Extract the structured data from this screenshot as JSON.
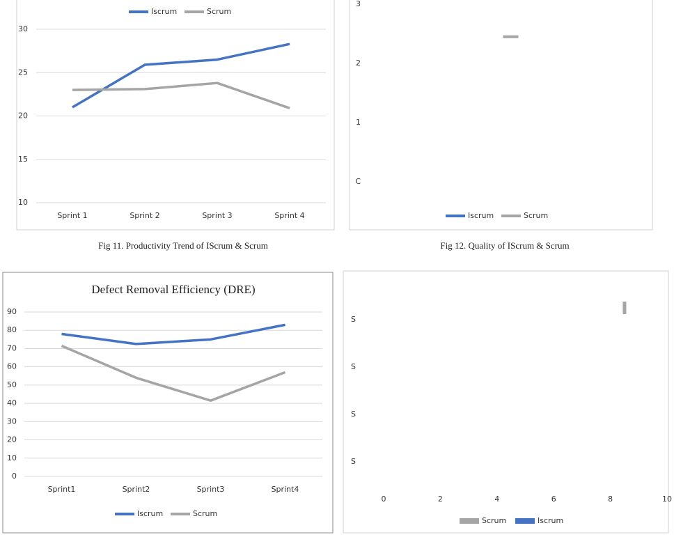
{
  "chart_data": [
    {
      "type": "line",
      "categories": [
        "Sprint 1",
        "Sprint 2",
        "Sprint 3",
        "Sprint 4"
      ],
      "series": [
        {
          "name": "Iscrum",
          "color": "#4472c4",
          "values": [
            21,
            25.9,
            26.5,
            28.3
          ]
        },
        {
          "name": "Scrum",
          "color": "#a5a5a5",
          "values": [
            23,
            23.1,
            23.8,
            20.9
          ]
        }
      ],
      "ylim": [
        10,
        30
      ],
      "yticks": [
        10,
        15,
        20,
        25,
        30
      ],
      "grid": true,
      "legend": "top"
    },
    {
      "type": "line",
      "categories": [
        null
      ],
      "series": [
        {
          "name": "Iscrum",
          "color": "#4472c4",
          "values": [
            null
          ]
        },
        {
          "name": "Scrum",
          "color": "#a5a5a5",
          "values": [
            2.45
          ]
        }
      ],
      "ylim": [
        0,
        3
      ],
      "yticks": [
        {
          "value": 0,
          "label": "C"
        },
        1,
        2,
        3
      ],
      "grid": false,
      "legend": "bottom"
    },
    {
      "type": "line",
      "title": "Defect Removal Efficiency (DRE)",
      "categories": [
        "Sprint1",
        "Sprint2",
        "Sprint3",
        "Sprint4"
      ],
      "series": [
        {
          "name": "Iscrum",
          "color": "#4472c4",
          "values": [
            78,
            72.5,
            75,
            83
          ]
        },
        {
          "name": "Scrum",
          "color": "#a5a5a5",
          "values": [
            71.5,
            54,
            41.5,
            57
          ]
        }
      ],
      "ylim": [
        0,
        90
      ],
      "yticks": [
        0,
        10,
        20,
        30,
        40,
        50,
        60,
        70,
        80,
        90
      ],
      "grid": true,
      "legend": "bottom"
    },
    {
      "type": "dot",
      "categories": [
        "S",
        "S",
        "S",
        "S"
      ],
      "series": [
        {
          "name": "Scrum",
          "color": "#a5a5a5",
          "values": [
            8.5,
            null,
            null,
            null
          ]
        },
        {
          "name": "Iscrum",
          "color": "#4472c4",
          "values": [
            null,
            null,
            null,
            null
          ]
        }
      ],
      "xlim": [
        0,
        10
      ],
      "xticks": [
        0,
        2,
        4,
        6,
        8,
        10
      ],
      "grid": false,
      "legend": "bottom"
    }
  ],
  "captions": [
    "Fig 11. Productivity Trend of IScrum & Scrum",
    "Fig 12. Quality of IScrum & Scrum"
  ]
}
